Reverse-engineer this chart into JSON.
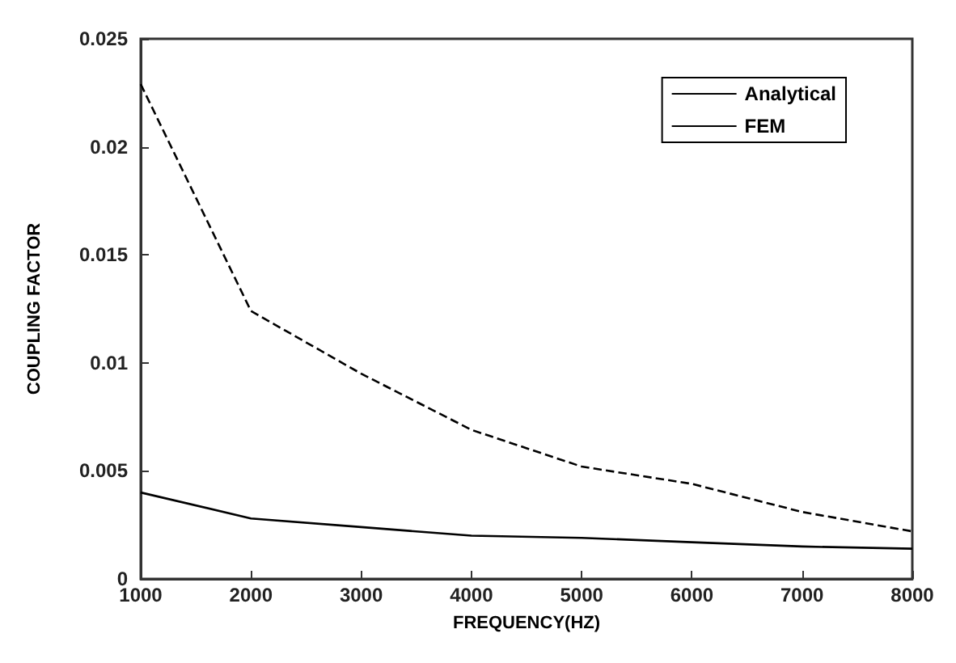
{
  "chart_data": {
    "type": "line",
    "xlabel": "FREQUENCY(HZ)",
    "ylabel": "COUPLING FACTOR",
    "x": [
      1000,
      2000,
      3000,
      4000,
      5000,
      6000,
      7000,
      8000
    ],
    "series": [
      {
        "name": "Analytical",
        "color": "#000000",
        "line_style": "solid",
        "values": [
          0.004,
          0.0028,
          0.0024,
          0.002,
          0.0019,
          0.0017,
          0.0015,
          0.0014
        ]
      },
      {
        "name": "FEM",
        "color": "#000000",
        "line_style": "dashed",
        "values": [
          0.0229,
          0.0124,
          0.0095,
          0.0069,
          0.0052,
          0.0044,
          0.0031,
          0.0022
        ]
      }
    ],
    "xlim": [
      1000,
      8000
    ],
    "xticks": [
      1000,
      2000,
      3000,
      4000,
      5000,
      6000,
      7000,
      8000
    ],
    "ylim": [
      0,
      0.025
    ],
    "yticks": [
      0,
      0.005,
      0.01,
      0.015,
      0.02,
      0.025
    ],
    "grid": false,
    "legend": "top right",
    "marker": "none"
  }
}
